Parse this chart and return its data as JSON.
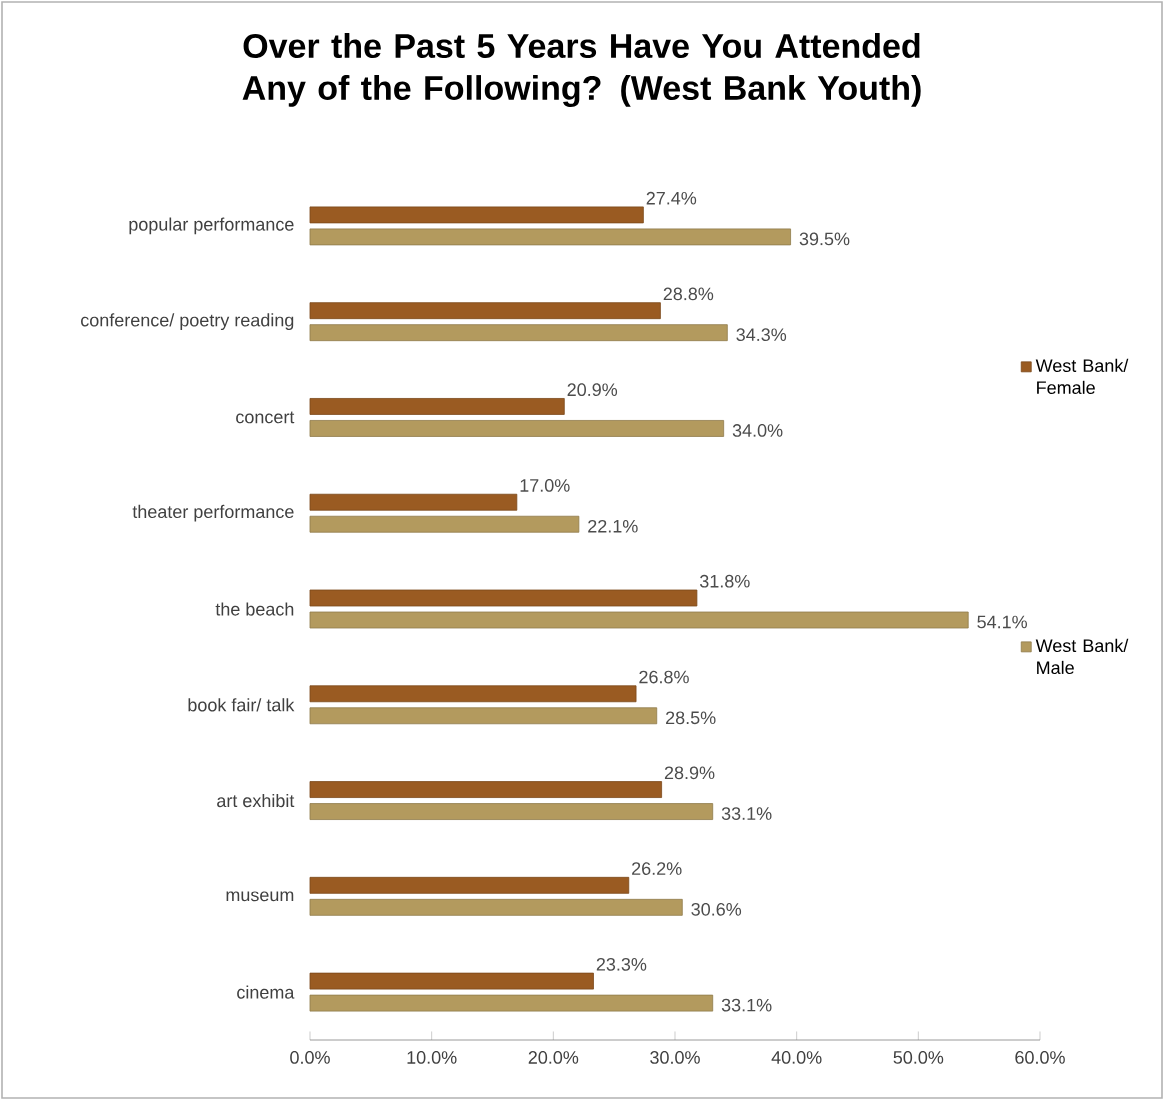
{
  "chart_data": {
    "type": "bar",
    "orientation": "horizontal",
    "title": "Over the Past 5 Years Have You Attended Any of the Following? (West Bank Youth)",
    "categories": [
      "popular performance",
      "conference/ poetry reading",
      "concert",
      "theater performance",
      "the beach",
      "book fair/ talk",
      "art exhibit",
      "museum",
      "cinema"
    ],
    "series": [
      {
        "name": "West Bank/ Female",
        "color": "#9a5b22",
        "values": [
          27.4,
          28.8,
          20.9,
          17.0,
          31.8,
          26.8,
          28.9,
          26.2,
          23.3
        ],
        "value_labels": [
          "27.4%",
          "28.8%",
          "20.9%",
          "17.0%",
          "31.8%",
          "26.8%",
          "28.9%",
          "26.2%",
          "23.3%"
        ]
      },
      {
        "name": "West Bank/ Male",
        "color": "#b39a5e",
        "values": [
          39.5,
          34.3,
          34.0,
          22.1,
          54.1,
          28.5,
          33.1,
          30.6,
          33.1
        ],
        "value_labels": [
          "39.5%",
          "34.3%",
          "34.0%",
          "22.1%",
          "54.1%",
          "28.5%",
          "33.1%",
          "30.6%",
          "33.1%"
        ]
      }
    ],
    "xlim": [
      0,
      60
    ],
    "xticks": [
      {
        "value": 0,
        "label": "0.0%"
      },
      {
        "value": 10,
        "label": "10.0%"
      },
      {
        "value": 20,
        "label": "20.0%"
      },
      {
        "value": 30,
        "label": "30.0%"
      },
      {
        "value": 40,
        "label": "40.0%"
      },
      {
        "value": 50,
        "label": "50.0%"
      },
      {
        "value": 60,
        "label": "60.0%"
      }
    ],
    "legend": "right",
    "grid": false
  }
}
